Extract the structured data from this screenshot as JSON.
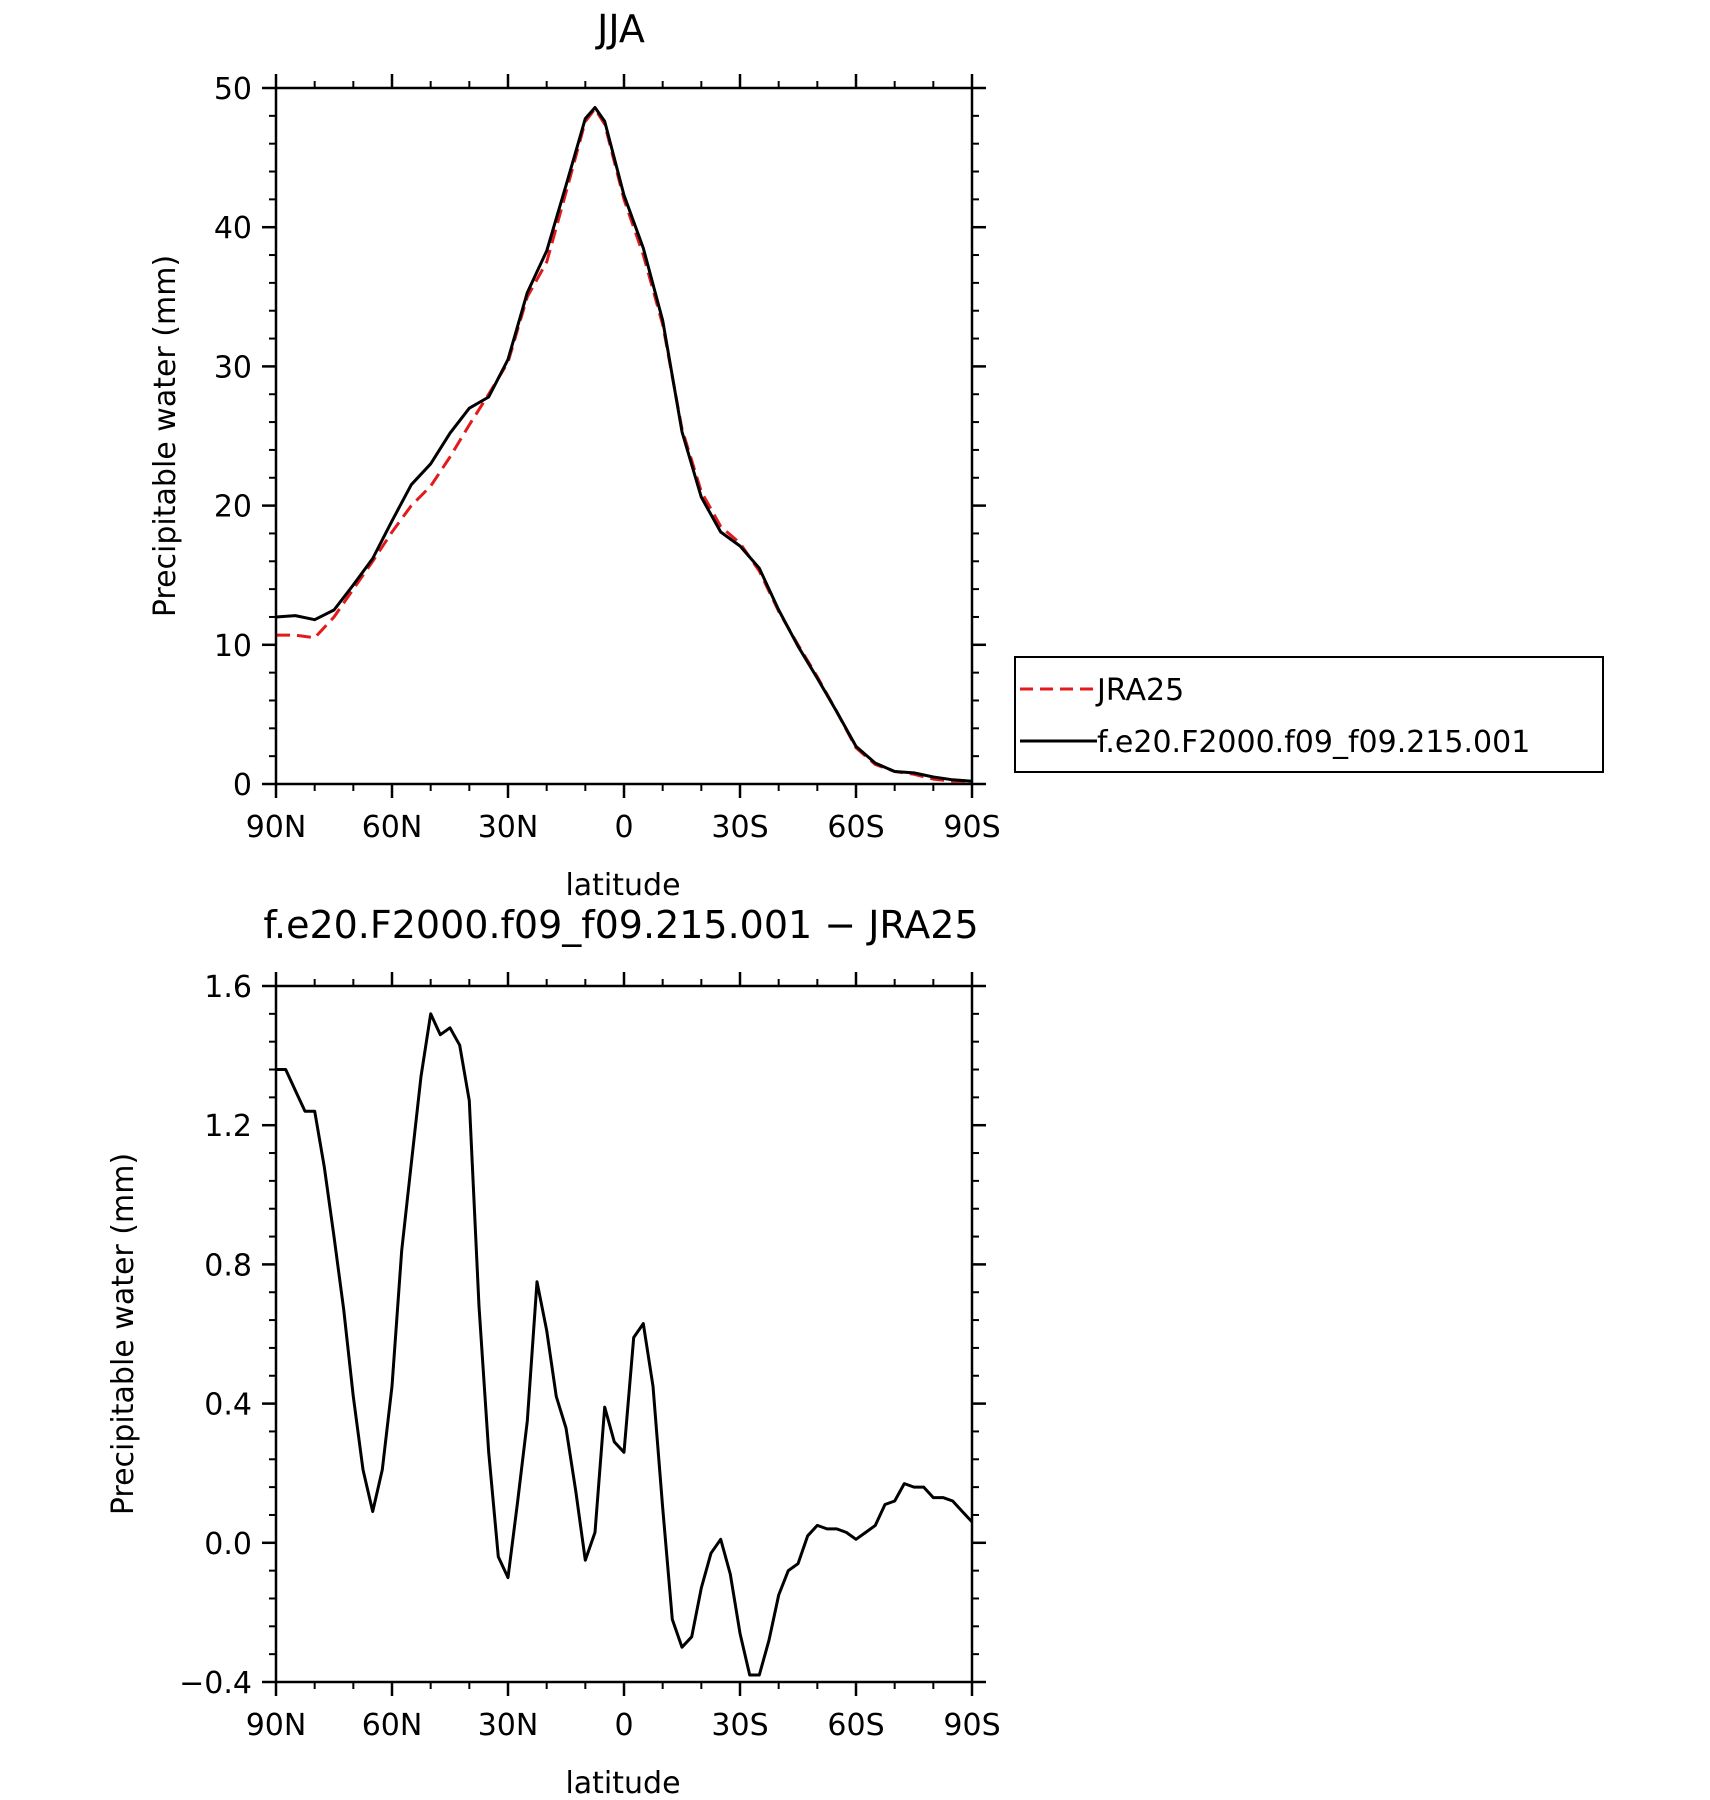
{
  "chart_data": [
    {
      "type": "line",
      "title": "JJA",
      "xlabel": "latitude",
      "ylabel": "Precipitable water (mm)",
      "xlim": [
        -90,
        90
      ],
      "ylim": [
        0,
        50
      ],
      "x_ticks": [
        -90,
        -60,
        -30,
        0,
        30,
        60,
        90
      ],
      "x_tick_labels": [
        "90N",
        "60N",
        "30N",
        "0",
        "30S",
        "60S",
        "90S"
      ],
      "y_ticks": [
        0,
        10,
        20,
        30,
        40,
        50
      ],
      "y_tick_labels": [
        "0",
        "10",
        "20",
        "30",
        "40",
        "50"
      ],
      "grid": false,
      "legend_position": "right, outside plot",
      "series": [
        {
          "name": "JRA25",
          "color": "#e31a1c",
          "style": "dashed",
          "x": [
            -90,
            -85,
            -80,
            -75,
            -70,
            -65,
            -60,
            -55,
            -50,
            -45,
            -40,
            -35,
            -30,
            -25,
            -20,
            -15,
            -10,
            -7.5,
            -5,
            0,
            5,
            10,
            15,
            20,
            25,
            30,
            35,
            40,
            45,
            50,
            55,
            60,
            65,
            70,
            75,
            80,
            85,
            90
          ],
          "y": [
            10.7,
            10.7,
            10.5,
            12.0,
            14.0,
            16.0,
            18.1,
            20.0,
            21.4,
            23.5,
            25.8,
            28.0,
            30.3,
            35.0,
            37.5,
            42.5,
            47.6,
            48.5,
            47.4,
            42.0,
            38.0,
            33.0,
            25.5,
            21.0,
            18.5,
            17.3,
            15.3,
            12.4,
            10.0,
            7.7,
            5.2,
            2.6,
            1.4,
            0.9,
            0.7,
            0.35,
            0.2,
            0.2
          ]
        },
        {
          "name": "f.e20.F2000.f09_f09.215.001",
          "color": "#000000",
          "style": "solid",
          "x": [
            -90,
            -85,
            -80,
            -75,
            -70,
            -65,
            -60,
            -55,
            -50,
            -45,
            -40,
            -35,
            -30,
            -25,
            -20,
            -15,
            -10,
            -7.5,
            -5,
            0,
            5,
            10,
            15,
            20,
            25,
            30,
            35,
            40,
            45,
            50,
            55,
            60,
            65,
            70,
            75,
            80,
            85,
            90
          ],
          "y": [
            12.0,
            12.1,
            11.8,
            12.5,
            14.3,
            16.2,
            18.9,
            21.5,
            23.0,
            25.2,
            27.0,
            27.8,
            30.5,
            35.3,
            38.3,
            43.0,
            47.8,
            48.6,
            47.6,
            42.3,
            38.5,
            33.3,
            25.3,
            20.6,
            18.1,
            17.1,
            15.5,
            12.5,
            9.9,
            7.6,
            5.2,
            2.7,
            1.5,
            0.9,
            0.8,
            0.5,
            0.3,
            0.2
          ]
        }
      ]
    },
    {
      "type": "line",
      "title": "f.e20.F2000.f09_f09.215.001 − JRA25",
      "xlabel": "latitude",
      "ylabel": "Precipitable water (mm)",
      "xlim": [
        -90,
        90
      ],
      "ylim": [
        -0.4,
        1.6
      ],
      "x_ticks": [
        -90,
        -60,
        -30,
        0,
        30,
        60,
        90
      ],
      "x_tick_labels": [
        "90N",
        "60N",
        "30N",
        "0",
        "30S",
        "60S",
        "90S"
      ],
      "y_ticks": [
        -0.4,
        0.0,
        0.4,
        0.8,
        1.2,
        1.6
      ],
      "y_tick_labels": [
        "−0.4",
        "0.0",
        "0.4",
        "0.8",
        "1.2",
        "1.6"
      ],
      "grid": false,
      "series": [
        {
          "color": "#000000",
          "style": "solid",
          "x": [
            -90,
            -87.5,
            -85,
            -82.5,
            -80,
            -77.5,
            -75,
            -72.5,
            -70,
            -67.5,
            -65,
            -62.5,
            -60,
            -57.5,
            -55,
            -52.5,
            -50,
            -47.5,
            -45,
            -42.5,
            -40,
            -37.5,
            -35,
            -32.5,
            -30,
            -27.5,
            -25,
            -22.5,
            -20,
            -17.5,
            -15,
            -12.5,
            -10,
            -7.5,
            -5,
            -2.5,
            0,
            2.5,
            5,
            7.5,
            10,
            12.5,
            15,
            17.5,
            20,
            22.5,
            25,
            27.5,
            30,
            32.5,
            35,
            37.5,
            40,
            42.5,
            45,
            47.5,
            50,
            52.5,
            55,
            57.5,
            60,
            62.5,
            65,
            67.5,
            70,
            72.5,
            75,
            77.5,
            80,
            82.5,
            85,
            87.5,
            90
          ],
          "y": [
            1.36,
            1.36,
            1.3,
            1.24,
            1.24,
            1.08,
            0.88,
            0.67,
            0.42,
            0.21,
            0.09,
            0.21,
            0.45,
            0.84,
            1.09,
            1.34,
            1.52,
            1.46,
            1.48,
            1.43,
            1.27,
            0.68,
            0.26,
            -0.04,
            -0.1,
            0.12,
            0.35,
            0.75,
            0.61,
            0.42,
            0.33,
            0.15,
            -0.05,
            0.03,
            0.39,
            0.29,
            0.26,
            0.59,
            0.63,
            0.45,
            0.1,
            -0.22,
            -0.3,
            -0.27,
            -0.13,
            -0.03,
            0.01,
            -0.09,
            -0.26,
            -0.38,
            -0.38,
            -0.28,
            -0.15,
            -0.08,
            -0.06,
            0.02,
            0.05,
            0.04,
            0.04,
            0.03,
            0.01,
            0.03,
            0.05,
            0.11,
            0.12,
            0.17,
            0.16,
            0.16,
            0.13,
            0.13,
            0.12,
            0.09,
            0.06
          ]
        }
      ]
    }
  ]
}
